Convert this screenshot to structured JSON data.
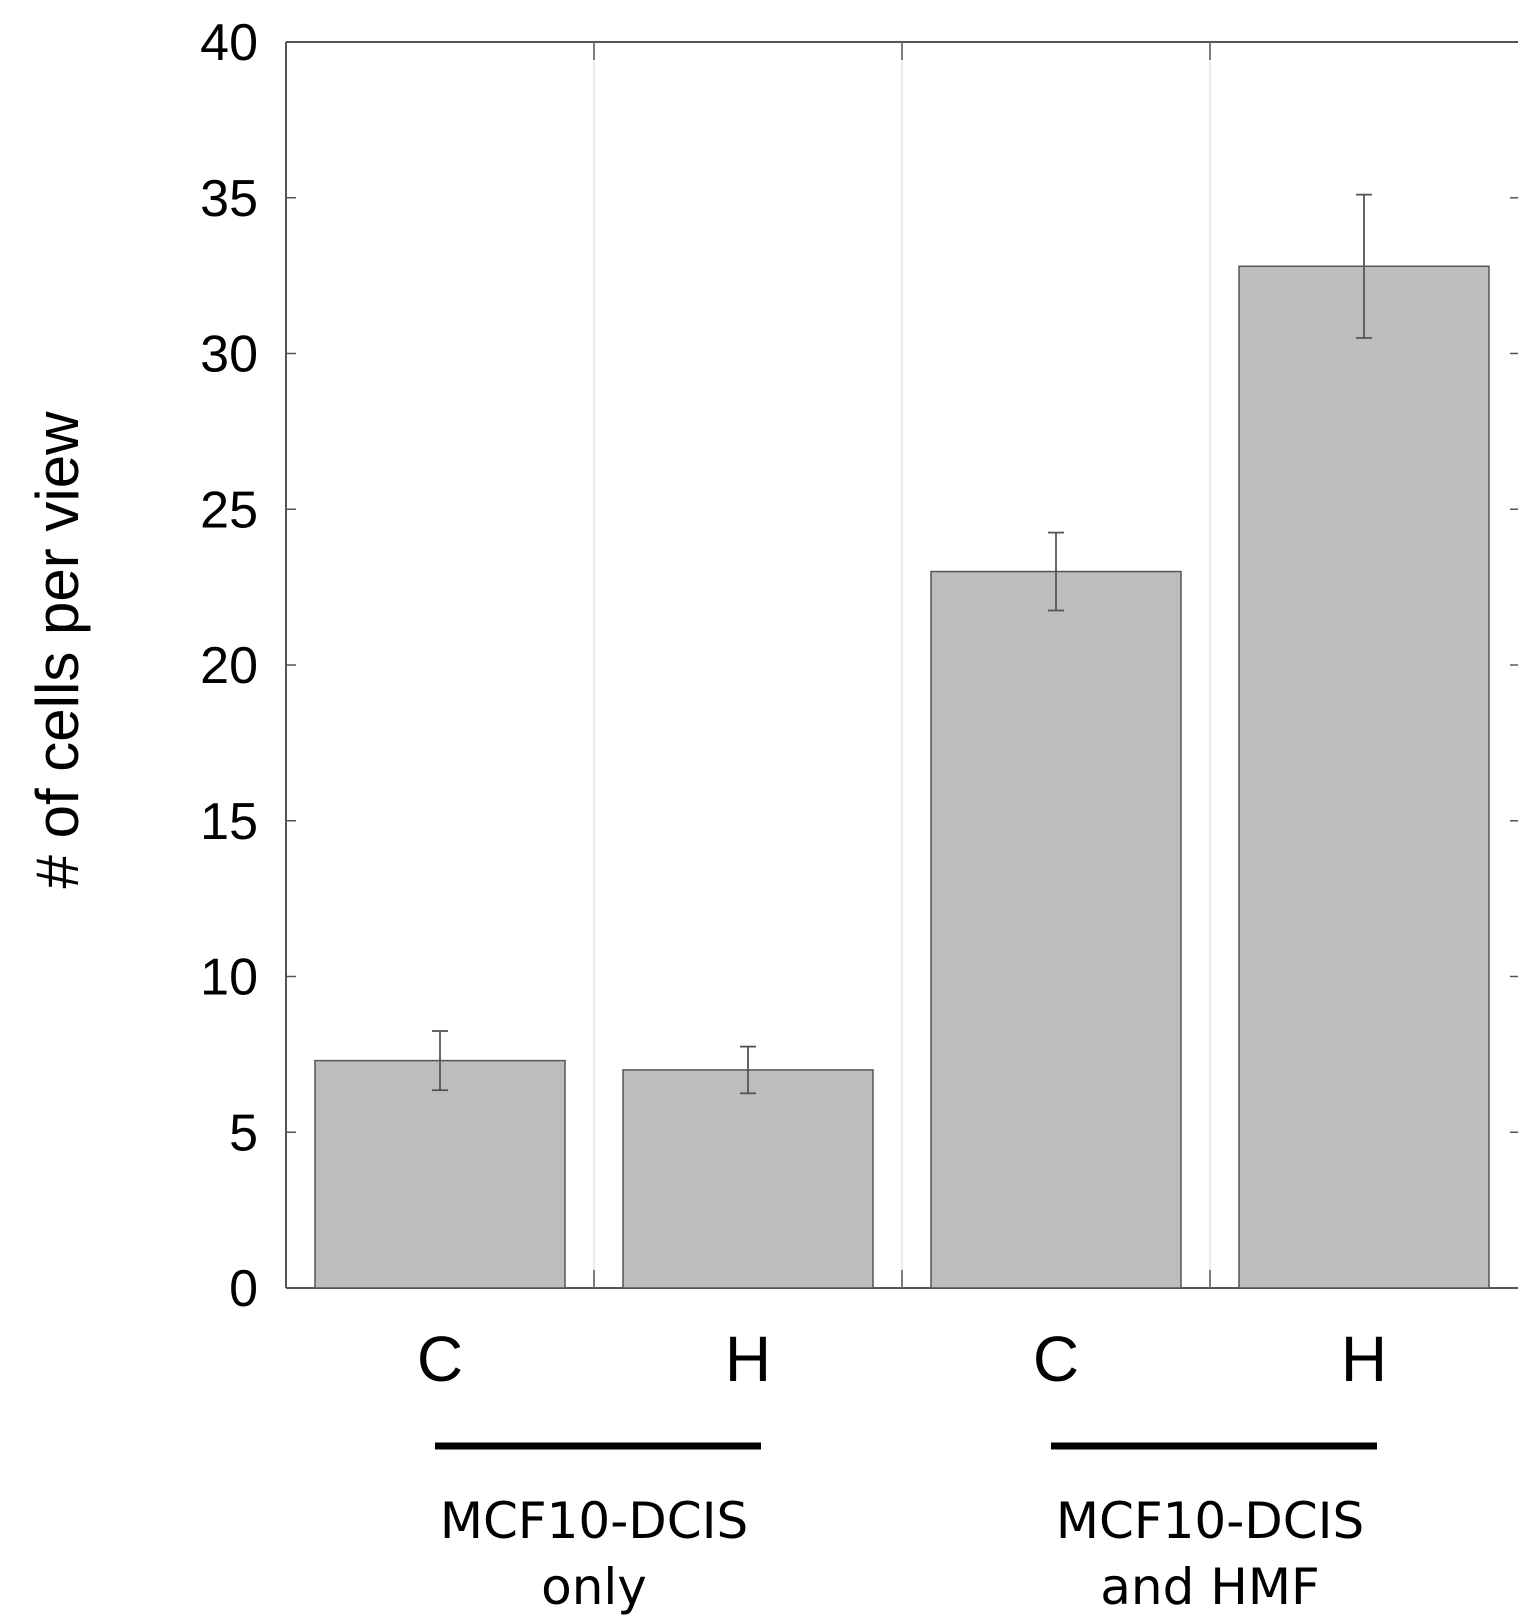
{
  "chart_data": {
    "type": "bar",
    "ylabel": "# of cells per view",
    "ylim": [
      0,
      40
    ],
    "yticks": [
      0,
      5,
      10,
      15,
      20,
      25,
      30,
      35,
      40
    ],
    "grid": false,
    "categories": [
      "C",
      "H",
      "C",
      "H"
    ],
    "values": [
      7.3,
      7.0,
      23.0,
      32.8
    ],
    "error": [
      0.95,
      0.75,
      1.25,
      2.3
    ],
    "groups": [
      {
        "label_line1": "MCF10-DCIS",
        "label_line2": "only",
        "categories": [
          0,
          1
        ]
      },
      {
        "label_line1": "MCF10-DCIS",
        "label_line2": "and HMF",
        "categories": [
          2,
          3
        ]
      }
    ],
    "colors": {
      "bar_fill": "#bdbdbd",
      "bar_stroke": "#555555",
      "error": "#555555",
      "axis": "#555555"
    }
  }
}
